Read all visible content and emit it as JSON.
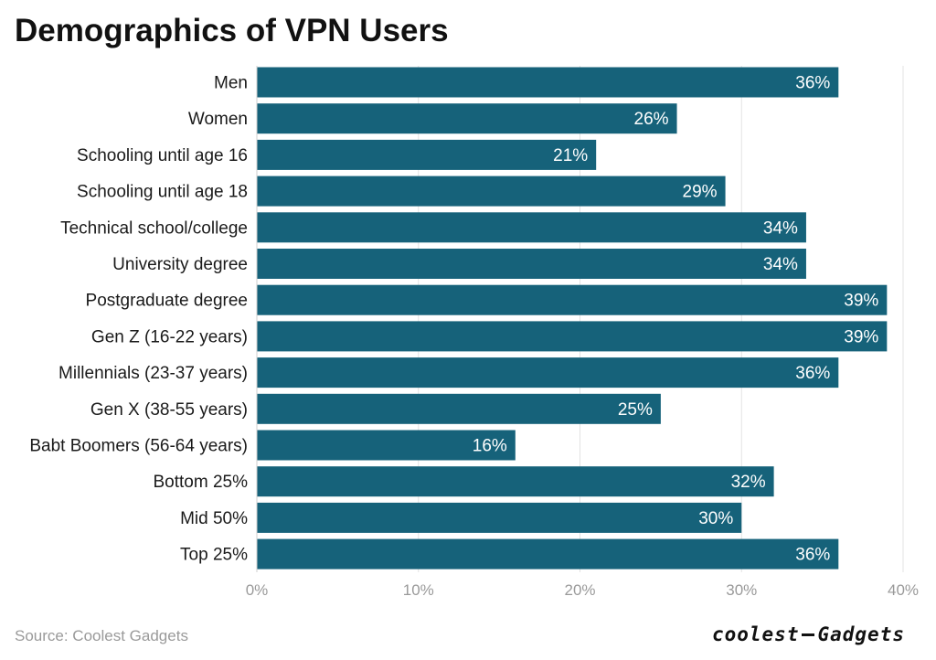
{
  "title": "Demographics of VPN Users",
  "source": "Source: Coolest Gadgets",
  "logo": {
    "left": "coolest",
    "right": "Gadgets"
  },
  "colors": {
    "bar": "#16627a",
    "label": "#ffffff",
    "grid": "#e3e3e3",
    "axis_tick": "#9a9a9a",
    "category": "#1a1a1a"
  },
  "chart_data": {
    "type": "bar",
    "orientation": "horizontal",
    "categories": [
      "Men",
      "Women",
      "Schooling until age 16",
      "Schooling until age 18",
      "Technical school/college",
      "University degree",
      "Postgraduate degree",
      "Gen Z (16-22 years)",
      "Millennials (23-37 years)",
      "Gen X (38-55 years)",
      "Babt Boomers (56-64 years)",
      "Bottom 25%",
      "Mid 50%",
      "Top 25%"
    ],
    "values": [
      36,
      26,
      21,
      29,
      34,
      34,
      39,
      39,
      36,
      25,
      16,
      32,
      30,
      36
    ],
    "data_labels": [
      "36%",
      "26%",
      "21%",
      "29%",
      "34%",
      "34%",
      "39%",
      "39%",
      "36%",
      "25%",
      "16%",
      "32%",
      "30%",
      "36%"
    ],
    "xlim": [
      0,
      40
    ],
    "xticks": [
      0,
      10,
      20,
      30,
      40
    ],
    "xtick_labels": [
      "0%",
      "10%",
      "20%",
      "30%",
      "40%"
    ],
    "grid": true,
    "legend": "none"
  }
}
